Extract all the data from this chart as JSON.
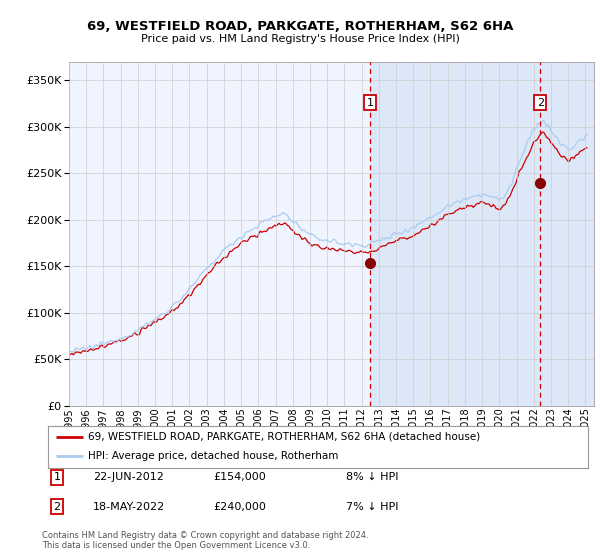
{
  "title1": "69, WESTFIELD ROAD, PARKGATE, ROTHERHAM, S62 6HA",
  "title2": "Price paid vs. HM Land Registry's House Price Index (HPI)",
  "legend_line1": "69, WESTFIELD ROAD, PARKGATE, ROTHERHAM, S62 6HA (detached house)",
  "legend_line2": "HPI: Average price, detached house, Rotherham",
  "marker1_date": "22-JUN-2012",
  "marker1_price": 154000,
  "marker1_note": "8% ↓ HPI",
  "marker2_date": "18-MAY-2022",
  "marker2_price": 240000,
  "marker2_note": "7% ↓ HPI",
  "footnote": "Contains HM Land Registry data © Crown copyright and database right 2024.\nThis data is licensed under the Open Government Licence v3.0.",
  "hpi_color": "#AACCEE",
  "price_color": "#CC0000",
  "bg_color_main": "#F0F4FF",
  "bg_color_highlight": "#DCE8F8",
  "grid_color": "#CCCCCC",
  "ylim": [
    0,
    370000
  ],
  "yticks": [
    0,
    50000,
    100000,
    150000,
    200000,
    250000,
    300000,
    350000
  ],
  "xmin": 1995,
  "xmax": 2025.5
}
